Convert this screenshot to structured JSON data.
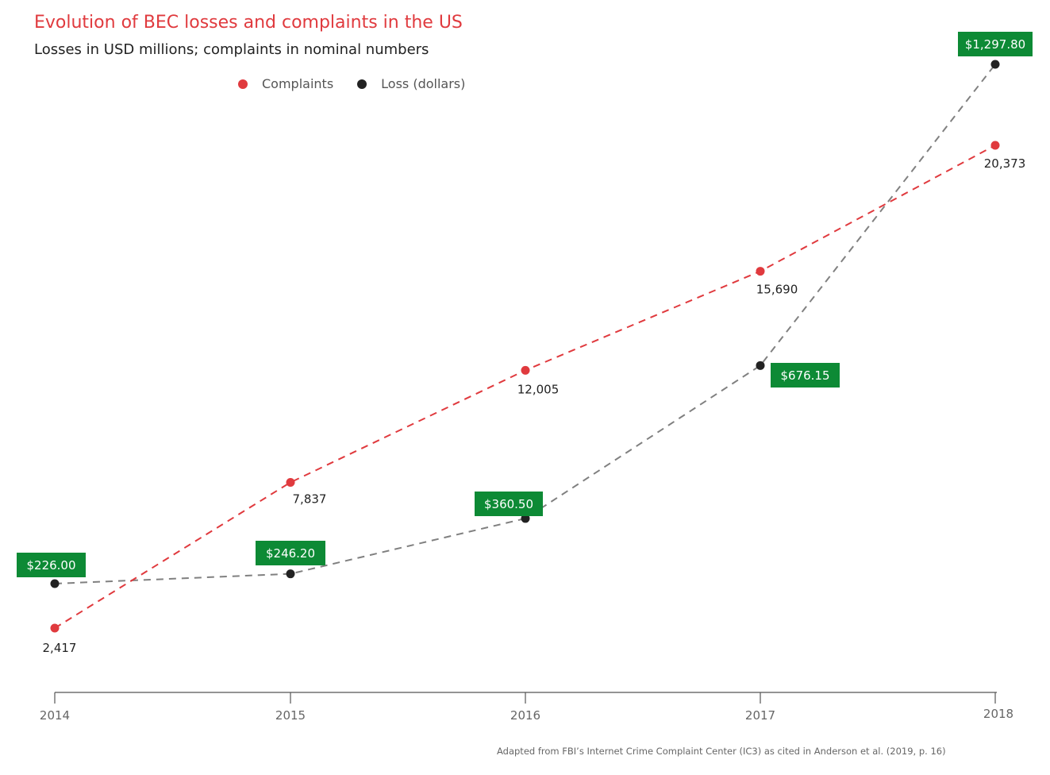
{
  "title": "Evolution of BEC losses and complaints in the US",
  "subtitle": "Losses in USD millions; complaints in nominal numbers",
  "source": "Adapted from FBI’s Internet Crime Complaint Center (IC3) as cited in Anderson et al. (2019, p. 16)",
  "colors": {
    "complaints": "#e03a3e",
    "loss_point": "#222222",
    "loss_line": "#808080",
    "loss_label_bg": "#0d8a35",
    "title": "#e03a3e"
  },
  "chart_data": {
    "type": "line",
    "categories": [
      "2014",
      "2015",
      "2016",
      "2017",
      "2018"
    ],
    "series": [
      {
        "name": "Complaints",
        "values": [
          2417,
          7837,
          12005,
          15690,
          20373
        ],
        "labels": [
          "2,417",
          "7,837",
          "12,005",
          "15,690",
          "20,373"
        ]
      },
      {
        "name": "Loss (dollars)",
        "values": [
          226.0,
          246.2,
          360.5,
          676.15,
          1297.8
        ],
        "labels": [
          "$226.00",
          "$246.20",
          "$360.50",
          "$676.15",
          "$1,297.80"
        ]
      }
    ],
    "line_style": "dashed",
    "grid": false,
    "legend_position": "top"
  }
}
